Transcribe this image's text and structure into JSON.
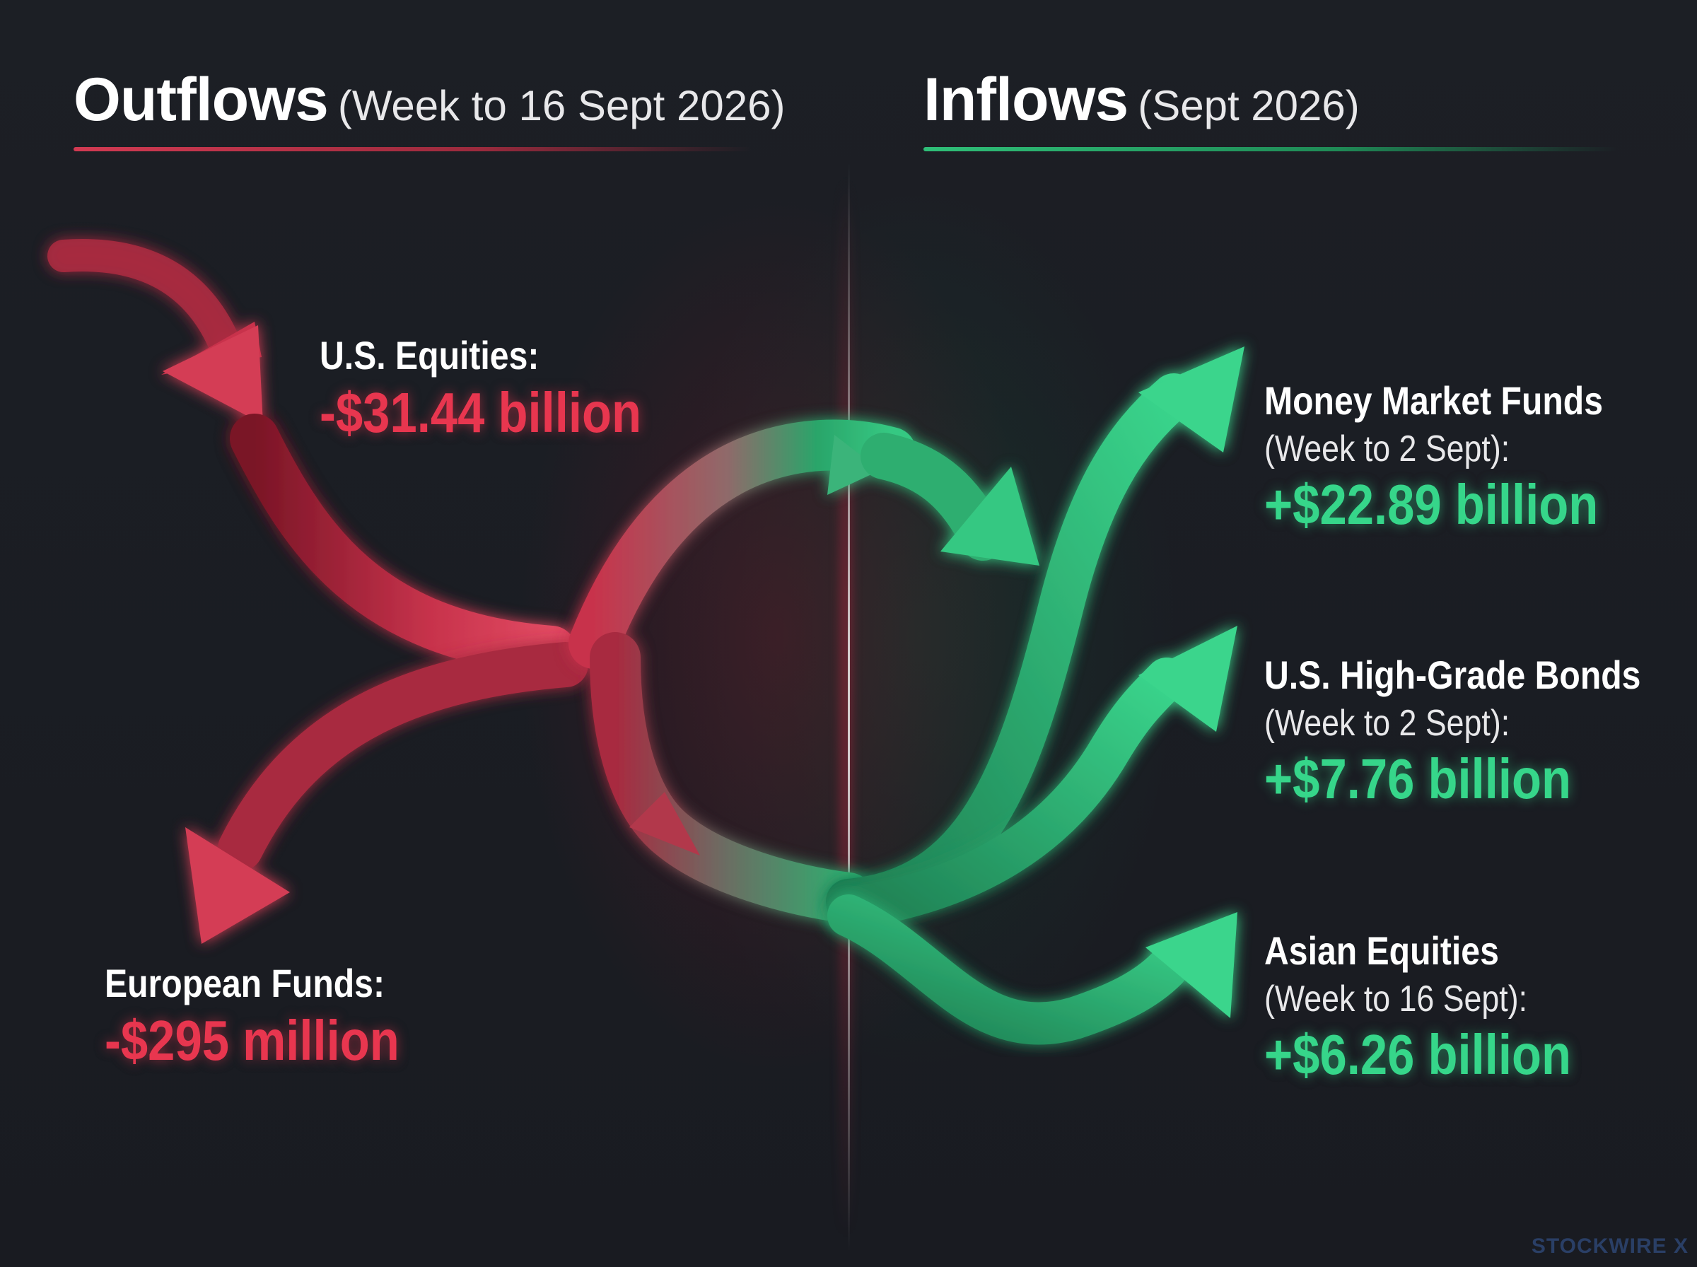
{
  "outflows": {
    "title": "Outflows",
    "period": "(Week to 16 Sept 2026)",
    "color": "#e8364f",
    "items": [
      {
        "name": "U.S. Equities:",
        "value": "-$31.44 billion"
      },
      {
        "name": "European Funds:",
        "value": "-$295 million"
      }
    ]
  },
  "inflows": {
    "title": "Inflows",
    "period": "(Sept 2026)",
    "color": "#36d68a",
    "items": [
      {
        "name": "Money Market Funds",
        "period": "(Week to 2 Sept):",
        "value": "+$22.89 billion"
      },
      {
        "name": "U.S. High-Grade Bonds",
        "period": "(Week to 2 Sept):",
        "value": "+$7.76 billion"
      },
      {
        "name": "Asian Equities",
        "period": "(Week to 16 Sept):",
        "value": "+$6.26 billion"
      }
    ]
  },
  "watermark": "STOCKWIRE X"
}
